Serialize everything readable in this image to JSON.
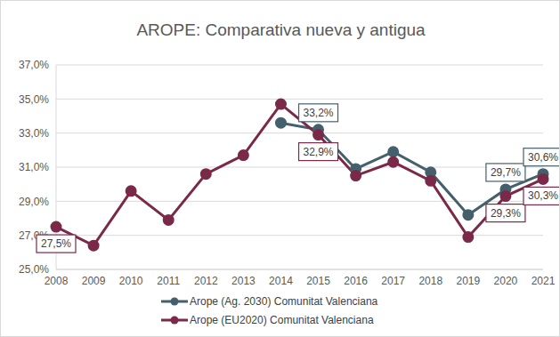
{
  "chart_data": {
    "type": "line",
    "title": "AROPE: Comparativa nueva y antigua",
    "categories": [
      "2008",
      "2009",
      "2010",
      "2011",
      "2012",
      "2013",
      "2014",
      "2015",
      "2016",
      "2017",
      "2018",
      "2019",
      "2020",
      "2021"
    ],
    "series": [
      {
        "name": "Arope (Ag. 2030) Comunitat Valenciana",
        "color": "#44606c",
        "marker": "circle",
        "values": [
          null,
          null,
          null,
          null,
          null,
          null,
          33.6,
          33.2,
          30.9,
          31.9,
          30.7,
          28.2,
          29.7,
          30.6
        ],
        "value_labels": [
          null,
          null,
          null,
          null,
          null,
          null,
          null,
          "33,2%",
          null,
          null,
          null,
          null,
          "29,7%",
          "30,6%"
        ]
      },
      {
        "name": "Arope (EU2020) Comunitat Valenciana",
        "color": "#7a2948",
        "marker": "circle",
        "values": [
          27.5,
          26.4,
          29.6,
          27.9,
          30.6,
          31.7,
          34.7,
          32.9,
          30.5,
          31.3,
          30.2,
          26.9,
          29.3,
          30.3
        ],
        "value_labels": [
          "27,5%",
          null,
          null,
          null,
          null,
          null,
          null,
          "32,9%",
          null,
          null,
          null,
          null,
          "29,3%",
          "30,3%"
        ]
      }
    ],
    "ylim": [
      25,
      37
    ],
    "yticks": [
      {
        "value": 25,
        "label": "25,0%"
      },
      {
        "value": 27,
        "label": "27,0%"
      },
      {
        "value": 29,
        "label": "29,0%"
      },
      {
        "value": 31,
        "label": "31,0%"
      },
      {
        "value": 33,
        "label": "33,0%"
      },
      {
        "value": 35,
        "label": "35,0%"
      },
      {
        "value": 37,
        "label": "37,0%"
      }
    ],
    "grid": true,
    "legend": "bottom",
    "data_labels": true
  }
}
